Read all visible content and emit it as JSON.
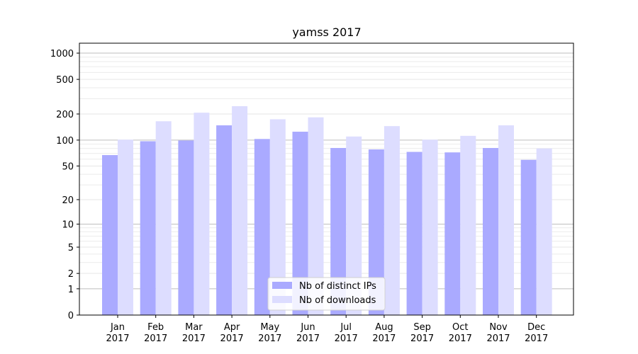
{
  "chart_data": {
    "type": "bar",
    "title": "yamss 2017",
    "xlabel": "",
    "ylabel": "",
    "y_scale": "symlog",
    "ylim": [
      0,
      1300
    ],
    "yticks": [
      0,
      1,
      2,
      5,
      10,
      20,
      50,
      100,
      200,
      500,
      1000
    ],
    "grid": "horizontal",
    "legend_position": "bottom-center",
    "categories": [
      [
        "Jan",
        "2017"
      ],
      [
        "Feb",
        "2017"
      ],
      [
        "Mar",
        "2017"
      ],
      [
        "Apr",
        "2017"
      ],
      [
        "May",
        "2017"
      ],
      [
        "Jun",
        "2017"
      ],
      [
        "Jul",
        "2017"
      ],
      [
        "Aug",
        "2017"
      ],
      [
        "Sep",
        "2017"
      ],
      [
        "Oct",
        "2017"
      ],
      [
        "Nov",
        "2017"
      ],
      [
        "Dec",
        "2017"
      ]
    ],
    "series": [
      {
        "name": "Nb of distinct IPs",
        "color": "#aaaaff",
        "values": [
          67,
          97,
          99,
          148,
          103,
          125,
          81,
          78,
          73,
          72,
          81,
          59
        ]
      },
      {
        "name": "Nb of downloads",
        "color": "#ddddff",
        "values": [
          101,
          165,
          207,
          246,
          174,
          183,
          110,
          145,
          101,
          112,
          148,
          80
        ]
      }
    ]
  }
}
